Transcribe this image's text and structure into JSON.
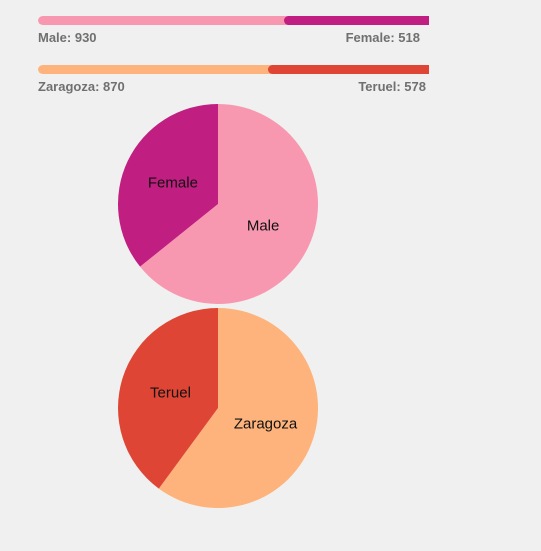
{
  "chart_data": [
    {
      "type": "pie",
      "categories": [
        "Male",
        "Female"
      ],
      "values": [
        930,
        518
      ],
      "colors": [
        "#f898b0",
        "#c01e80"
      ],
      "summary": [
        {
          "text": "Male: 930"
        },
        {
          "text": "Female: 518"
        }
      ]
    },
    {
      "type": "pie",
      "categories": [
        "Zaragoza",
        "Teruel"
      ],
      "values": [
        870,
        578
      ],
      "colors": [
        "#fdb37b",
        "#de4534"
      ],
      "summary": [
        {
          "text": "Zaragoza: 870"
        },
        {
          "text": "Teruel: 578"
        }
      ]
    }
  ]
}
